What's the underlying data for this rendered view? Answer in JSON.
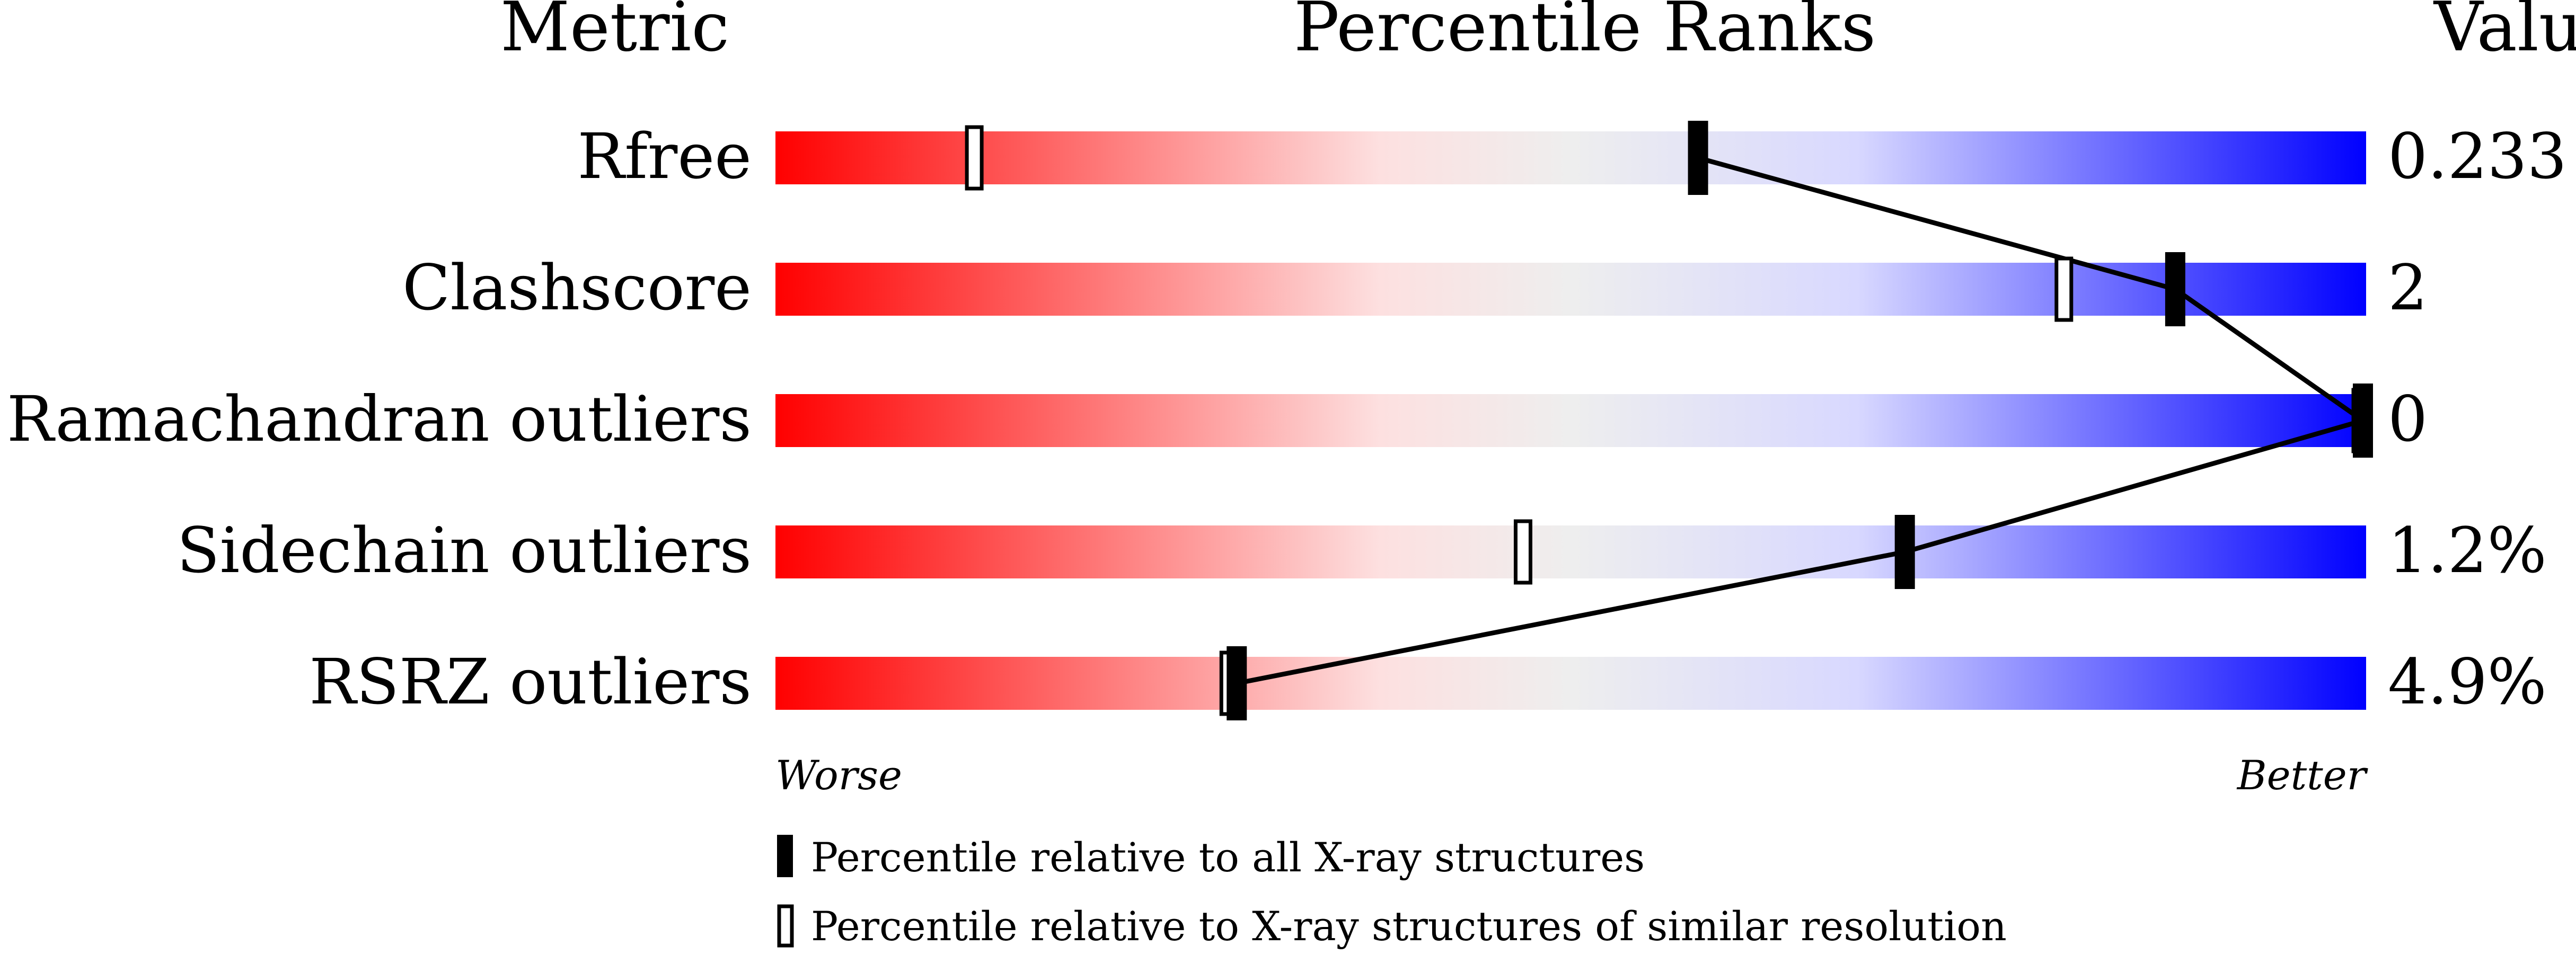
{
  "chart_data": {
    "type": "percentile-bar",
    "headers": {
      "metric": "Metric",
      "ranks": "Percentile Ranks",
      "value": "Value"
    },
    "xlim": [
      0,
      100
    ],
    "axis_left": "Worse",
    "axis_right": "Better",
    "gradient_colors": [
      "#ff0000",
      "#fde0e0",
      "#eeeeee",
      "#d8d8ff",
      "#0000ff"
    ],
    "rows": [
      {
        "metric": "Rfree",
        "value": "0.233",
        "percentile_all": 58,
        "percentile_similar": 12.5
      },
      {
        "metric": "Clashscore",
        "value": "2",
        "percentile_all": 88,
        "percentile_similar": 81
      },
      {
        "metric": "Ramachandran outliers",
        "value": "0",
        "percentile_all": 100,
        "percentile_similar": 100
      },
      {
        "metric": "Sidechain outliers",
        "value": "1.2%",
        "percentile_all": 71,
        "percentile_similar": 47
      },
      {
        "metric": "RSRZ outliers",
        "value": "4.9%",
        "percentile_all": 29,
        "percentile_similar": 28.5
      }
    ],
    "legend": [
      {
        "marker": "filled",
        "label": "Percentile relative to all X-ray structures"
      },
      {
        "marker": "hollow",
        "label": "Percentile relative to X-ray structures of similar resolution"
      }
    ]
  }
}
